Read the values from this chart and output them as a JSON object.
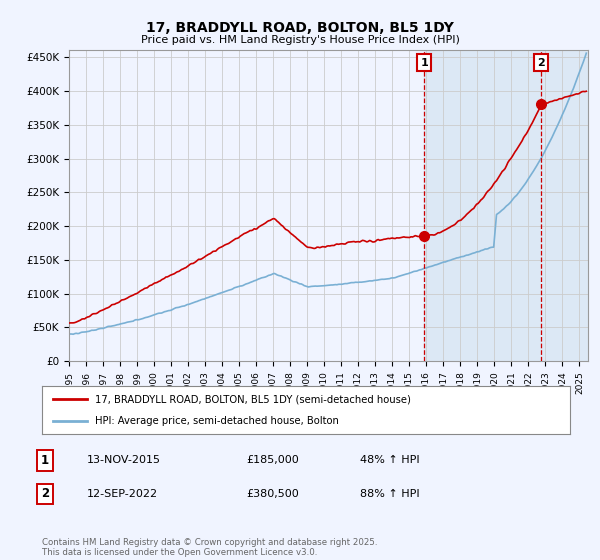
{
  "title": "17, BRADDYLL ROAD, BOLTON, BL5 1DY",
  "subtitle": "Price paid vs. HM Land Registry's House Price Index (HPI)",
  "ylim": [
    0,
    460000
  ],
  "yticks": [
    0,
    50000,
    100000,
    150000,
    200000,
    250000,
    300000,
    350000,
    400000,
    450000
  ],
  "ytick_labels": [
    "£0",
    "£50K",
    "£100K",
    "£150K",
    "£200K",
    "£250K",
    "£300K",
    "£350K",
    "£400K",
    "£450K"
  ],
  "xlim_start": 1995.0,
  "xlim_end": 2025.5,
  "xtick_years": [
    1995,
    1996,
    1997,
    1998,
    1999,
    2000,
    2001,
    2002,
    2003,
    2004,
    2005,
    2006,
    2007,
    2008,
    2009,
    2010,
    2011,
    2012,
    2013,
    2014,
    2015,
    2016,
    2017,
    2018,
    2019,
    2020,
    2021,
    2022,
    2023,
    2024,
    2025
  ],
  "line1_color": "#cc0000",
  "line2_color": "#7ab0d4",
  "vline1_x": 2015.87,
  "vline2_x": 2022.71,
  "vline_color": "#cc0000",
  "shade_color": "#dce8f5",
  "marker1_x": 2015.87,
  "marker1_y": 185000,
  "marker2_x": 2022.71,
  "marker2_y": 380500,
  "annotation1_label": "1",
  "annotation2_label": "2",
  "legend1_text": "17, BRADDYLL ROAD, BOLTON, BL5 1DY (semi-detached house)",
  "legend2_text": "HPI: Average price, semi-detached house, Bolton",
  "table_row1": [
    "1",
    "13-NOV-2015",
    "£185,000",
    "48% ↑ HPI"
  ],
  "table_row2": [
    "2",
    "12-SEP-2022",
    "£380,500",
    "88% ↑ HPI"
  ],
  "footer": "Contains HM Land Registry data © Crown copyright and database right 2025.\nThis data is licensed under the Open Government Licence v3.0.",
  "bg_color": "#f0f4ff",
  "plot_bg_color": "#f0f4ff",
  "grid_color": "#cccccc"
}
